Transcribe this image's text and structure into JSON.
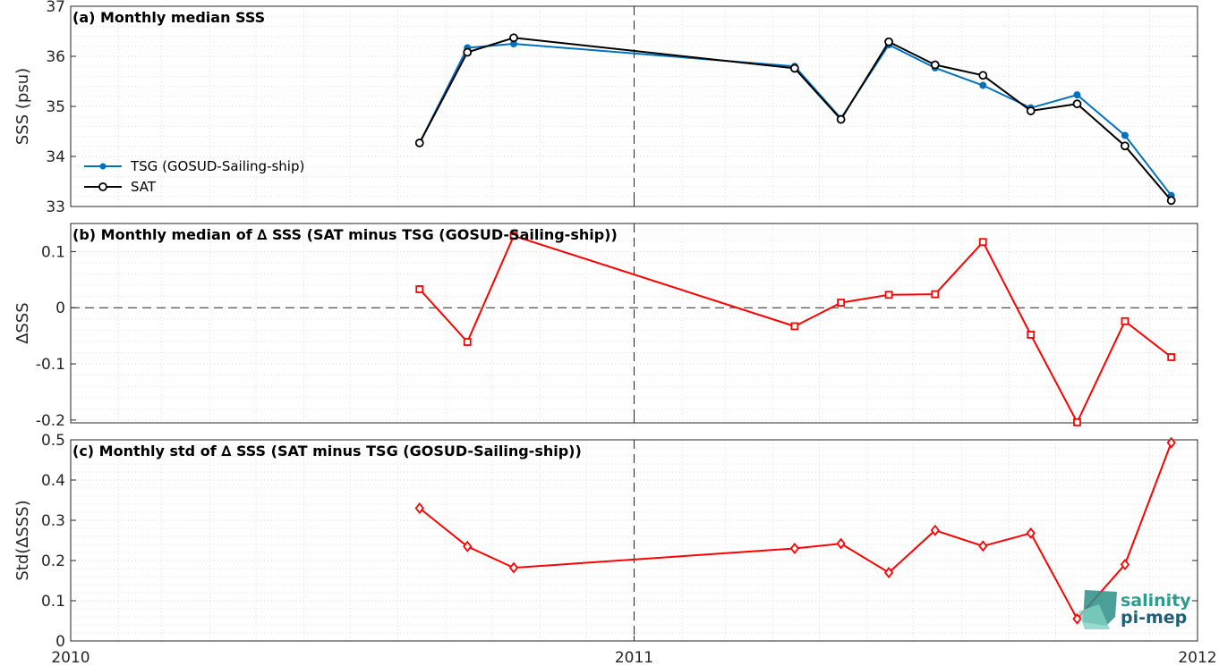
{
  "chart_data": [
    {
      "type": "line",
      "title": "(a) Monthly median SSS",
      "ylabel": "SSS (psu)",
      "xlim": [
        "2010-01-01",
        "2012-01-01"
      ],
      "ylim": [
        33,
        37
      ],
      "yticks": [
        "33",
        "34",
        "35",
        "36",
        "37"
      ],
      "x": [
        "2010-08-15",
        "2010-09-15",
        "2010-10-15",
        "2011-04-15",
        "2011-05-15",
        "2011-06-15",
        "2011-07-15",
        "2011-08-15",
        "2011-09-15",
        "2011-10-15",
        "2011-11-15",
        "2011-12-15"
      ],
      "series": [
        {
          "name": "TSG (GOSUD-Sailing-ship)",
          "color": "#0072BD",
          "marker": "dot",
          "values": [
            34.27,
            36.17,
            36.25,
            35.8,
            34.76,
            36.23,
            35.77,
            35.42,
            34.97,
            35.23,
            34.42,
            33.22
          ]
        },
        {
          "name": "SAT",
          "color": "#000000",
          "marker": "circle",
          "values": [
            34.27,
            36.08,
            36.37,
            35.76,
            34.74,
            36.29,
            35.83,
            35.62,
            34.91,
            35.05,
            34.21,
            33.12
          ]
        }
      ],
      "grid": true,
      "legend": "bottom-left"
    },
    {
      "type": "line",
      "title": "(b) Monthly median of ∆ SSS (SAT minus TSG (GOSUD-Sailing-ship))",
      "ylabel": "∆SSS",
      "xlim": [
        "2010-01-01",
        "2012-01-01"
      ],
      "ylim": [
        -0.205,
        0.15
      ],
      "yticks": [
        "-0.2",
        "-0.1",
        "0",
        "0.1"
      ],
      "x": [
        "2010-08-15",
        "2010-09-15",
        "2010-10-15",
        "2011-04-15",
        "2011-05-15",
        "2011-06-15",
        "2011-07-15",
        "2011-08-15",
        "2011-09-15",
        "2011-10-15",
        "2011-11-15",
        "2011-12-15"
      ],
      "series": [
        {
          "color": "#FF0000",
          "marker": "square",
          "values": [
            0.033,
            -0.061,
            0.128,
            -0.033,
            0.009,
            0.023,
            0.024,
            0.117,
            -0.048,
            -0.204,
            -0.024,
            -0.088
          ]
        }
      ],
      "grid": true
    },
    {
      "type": "line",
      "title": "(c) Monthly std of ∆ SSS (SAT minus TSG (GOSUD-Sailing-ship))",
      "ylabel": "Std(∆SSS)",
      "xlim": [
        "2010-01-01",
        "2012-01-01"
      ],
      "ylim": [
        0,
        0.5
      ],
      "yticks": [
        "0",
        "0.1",
        "0.2",
        "0.3",
        "0.4",
        "0.5"
      ],
      "xticks": [
        "2010",
        "2011",
        "2012"
      ],
      "x": [
        "2010-08-15",
        "2010-09-15",
        "2010-10-15",
        "2011-04-15",
        "2011-05-15",
        "2011-06-15",
        "2011-07-15",
        "2011-08-15",
        "2011-09-15",
        "2011-10-15",
        "2011-11-15",
        "2011-12-15"
      ],
      "series": [
        {
          "color": "#FF0000",
          "marker": "diamond",
          "values": [
            0.33,
            0.235,
            0.182,
            0.23,
            0.242,
            0.17,
            0.275,
            0.236,
            0.268,
            0.055,
            0.19,
            0.493
          ]
        }
      ],
      "grid": true
    }
  ],
  "logo": {
    "line1": "salinity",
    "line2": "pi-mep"
  }
}
